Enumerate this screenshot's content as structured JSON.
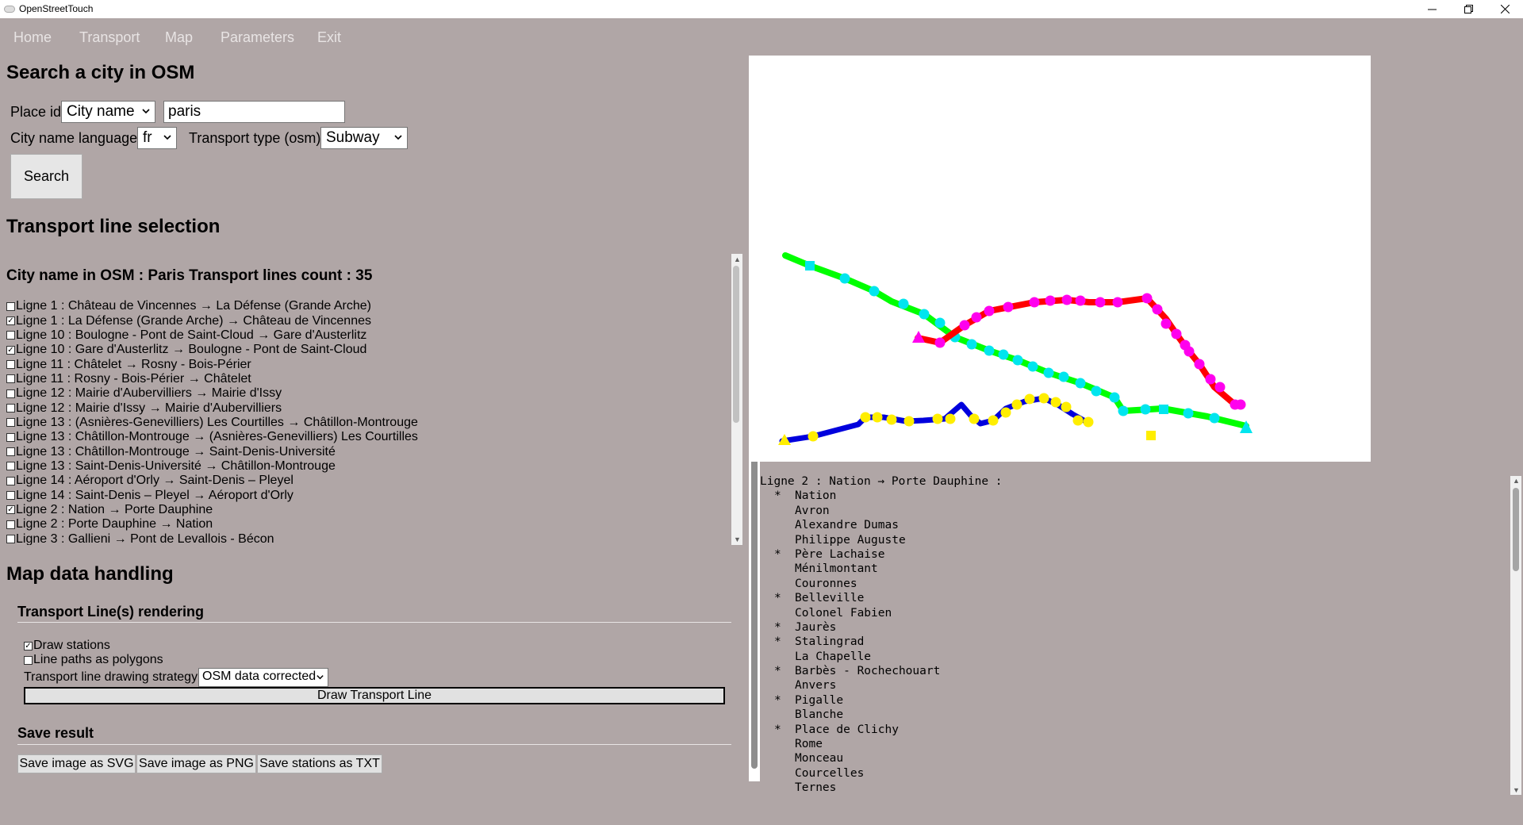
{
  "window": {
    "title": "OpenStreetTouch"
  },
  "menu": [
    "Home",
    "Transport",
    "Map",
    "Parameters",
    "Exit"
  ],
  "search": {
    "heading": "Search a city in OSM",
    "place_id_label": "Place id",
    "place_id_select": "City name",
    "city_input_value": "paris",
    "language_label": "City name language",
    "language_select": "fr",
    "transport_type_label": "Transport type (osm)",
    "transport_type_select": "Subway",
    "search_button": "Search"
  },
  "line_selection": {
    "heading": "Transport line selection",
    "summary": "City name in OSM : Paris Transport lines count : 35",
    "lines": [
      {
        "label": "Ligne 1 : Château de Vincennes → La Défense (Grande Arche)",
        "checked": false
      },
      {
        "label": "Ligne 1 : La Défense (Grande Arche) → Château de Vincennes",
        "checked": true
      },
      {
        "label": "Ligne 10 : Boulogne - Pont de Saint-Cloud → Gare d'Austerlitz",
        "checked": false
      },
      {
        "label": "Ligne 10 : Gare d'Austerlitz → Boulogne - Pont de Saint-Cloud",
        "checked": true
      },
      {
        "label": "Ligne 11 : Châtelet → Rosny - Bois-Périer",
        "checked": false
      },
      {
        "label": "Ligne 11 : Rosny - Bois-Périer → Châtelet",
        "checked": false
      },
      {
        "label": "Ligne 12 : Mairie d'Aubervilliers → Mairie d'Issy",
        "checked": false
      },
      {
        "label": "Ligne 12 : Mairie d'Issy → Mairie d'Aubervilliers",
        "checked": false
      },
      {
        "label": "Ligne 13 : (Asnières-Genevilliers) Les Courtilles → Châtillon-Montrouge",
        "checked": false
      },
      {
        "label": "Ligne 13 : Châtillon-Montrouge → (Asnières-Genevilliers) Les Courtilles",
        "checked": false
      },
      {
        "label": "Ligne 13 : Châtillon-Montrouge → Saint-Denis-Université",
        "checked": false
      },
      {
        "label": "Ligne 13 : Saint-Denis-Université → Châtillon-Montrouge",
        "checked": false
      },
      {
        "label": "Ligne 14 : Aéroport d'Orly → Saint-Denis – Pleyel",
        "checked": false
      },
      {
        "label": "Ligne 14 : Saint-Denis – Pleyel → Aéroport d'Orly",
        "checked": false
      },
      {
        "label": "Ligne 2 : Nation → Porte Dauphine",
        "checked": true
      },
      {
        "label": "Ligne 2 : Porte Dauphine → Nation",
        "checked": false
      },
      {
        "label": "Ligne 3 : Gallieni → Pont de Levallois - Bécon",
        "checked": false
      }
    ]
  },
  "map_data": {
    "heading": "Map data handling",
    "rendering_heading": "Transport Line(s) rendering",
    "draw_stations": {
      "label": "Draw stations",
      "checked": true
    },
    "polygons": {
      "label": "Line paths as polygons",
      "checked": false
    },
    "strategy_label": "Transport line drawing strategy",
    "strategy_select": "OSM data corrected",
    "draw_button": "Draw Transport Line",
    "save_heading": "Save result",
    "save_buttons": [
      "Save image as SVG",
      "Save image as PNG",
      "Save stations as TXT"
    ]
  },
  "stations_output": {
    "header": "Ligne 2 : Nation → Porte Dauphine :",
    "stations": [
      {
        "name": "Nation",
        "mark": "*"
      },
      {
        "name": "Avron",
        "mark": ""
      },
      {
        "name": "Alexandre Dumas",
        "mark": ""
      },
      {
        "name": "Philippe Auguste",
        "mark": ""
      },
      {
        "name": "Père Lachaise",
        "mark": "*"
      },
      {
        "name": "Ménilmontant",
        "mark": ""
      },
      {
        "name": "Couronnes",
        "mark": ""
      },
      {
        "name": "Belleville",
        "mark": "*"
      },
      {
        "name": "Colonel Fabien",
        "mark": ""
      },
      {
        "name": "Jaurès",
        "mark": "*"
      },
      {
        "name": "Stalingrad",
        "mark": "*"
      },
      {
        "name": "La Chapelle",
        "mark": ""
      },
      {
        "name": "Barbès - Rochechouart",
        "mark": "*"
      },
      {
        "name": "Anvers",
        "mark": ""
      },
      {
        "name": "Pigalle",
        "mark": "*"
      },
      {
        "name": "Blanche",
        "mark": ""
      },
      {
        "name": "Place de Clichy",
        "mark": "*"
      },
      {
        "name": "Rome",
        "mark": ""
      },
      {
        "name": "Monceau",
        "mark": ""
      },
      {
        "name": "Courcelles",
        "mark": ""
      },
      {
        "name": "Ternes",
        "mark": ""
      }
    ]
  },
  "colors": {
    "background": "#b0a6a6",
    "menu_text": "#e8e4e4",
    "line1_path": "#00ff00",
    "line1_stations": "#00e5ee",
    "line10_path": "#0000dd",
    "line10_stations": "#ffee00",
    "line2_path": "#ff0000",
    "line2_stations": "#ff00ee"
  }
}
